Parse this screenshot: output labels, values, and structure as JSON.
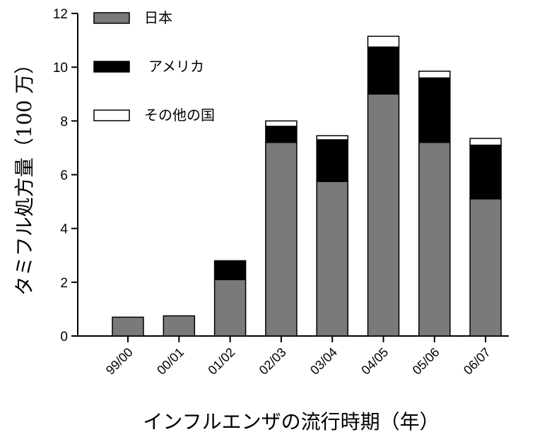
{
  "chart_data": {
    "type": "bar",
    "stacked": true,
    "title": "",
    "xlabel": "インフルエンザの流行時期（年）",
    "ylabel": "タミフル処方量（100 万）",
    "ylim": [
      0,
      12
    ],
    "yticks": [
      0,
      2,
      4,
      6,
      8,
      10,
      12
    ],
    "grid": false,
    "legend_position": "top-left",
    "categories": [
      "99/00",
      "00/01",
      "01/02",
      "02/03",
      "03/04",
      "04/05",
      "05/06",
      "06/07"
    ],
    "series": [
      {
        "name": "日本",
        "color": "#7a7a7a",
        "values": [
          0.7,
          0.75,
          2.1,
          7.2,
          5.75,
          9.0,
          7.2,
          5.1
        ]
      },
      {
        "name": "アメリカ",
        "color": "#000000",
        "values": [
          0.0,
          0.0,
          0.7,
          0.6,
          1.55,
          1.75,
          2.4,
          2.0
        ]
      },
      {
        "name": "その他の国",
        "color": "#ffffff",
        "values": [
          0.0,
          0.0,
          0.0,
          0.2,
          0.15,
          0.4,
          0.25,
          0.25
        ]
      }
    ]
  }
}
